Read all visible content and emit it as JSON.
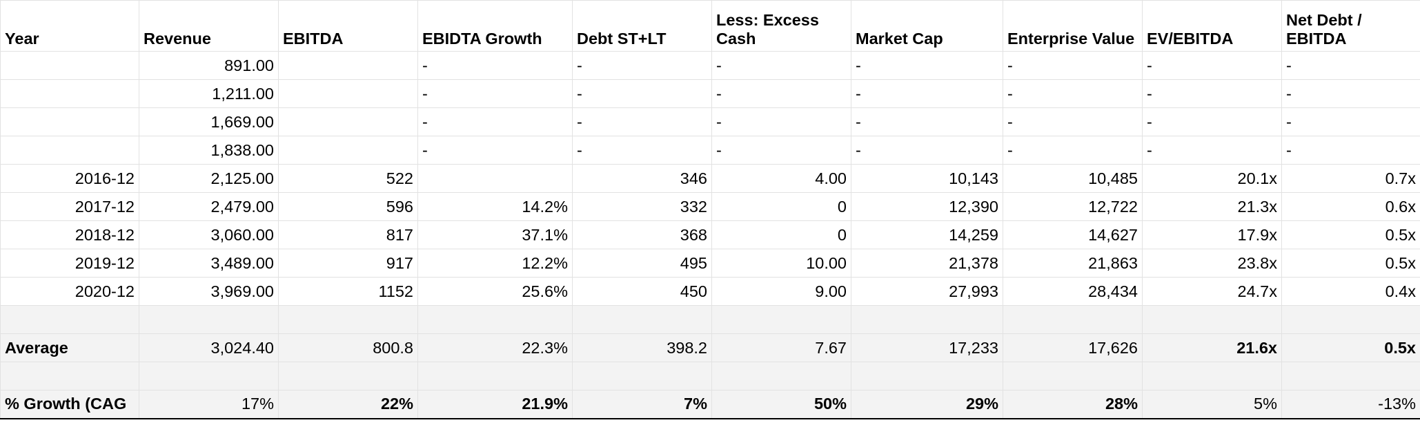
{
  "columns": [
    "Year",
    "Revenue",
    "EBITDA",
    "EBIDTA Growth",
    "Debt ST+LT",
    "Less: Excess Cash",
    "Market Cap",
    "Enterprise Value",
    "EV/EBITDA",
    "Net Debt / EBITDA"
  ],
  "rows": [
    [
      "",
      "891.00",
      "",
      "-",
      "-",
      "-",
      "-",
      "-",
      "-",
      "-"
    ],
    [
      "",
      "1,211.00",
      "",
      "-",
      "-",
      "-",
      "-",
      "-",
      "-",
      "-"
    ],
    [
      "",
      "1,669.00",
      "",
      "-",
      "-",
      "-",
      "-",
      "-",
      "-",
      "-"
    ],
    [
      "",
      "1,838.00",
      "",
      "-",
      "-",
      "-",
      "-",
      "-",
      "-",
      "-"
    ],
    [
      "2016-12",
      "2,125.00",
      "522",
      "",
      "346",
      "4.00",
      "10,143",
      "10,485",
      "20.1x",
      "0.7x"
    ],
    [
      "2017-12",
      "2,479.00",
      "596",
      "14.2%",
      "332",
      "0",
      "12,390",
      "12,722",
      "21.3x",
      "0.6x"
    ],
    [
      "2018-12",
      "3,060.00",
      "817",
      "37.1%",
      "368",
      "0",
      "14,259",
      "14,627",
      "17.9x",
      "0.5x"
    ],
    [
      "2019-12",
      "3,489.00",
      "917",
      "12.2%",
      "495",
      "10.00",
      "21,378",
      "21,863",
      "23.8x",
      "0.5x"
    ],
    [
      "2020-12",
      "3,969.00",
      "1152",
      "25.6%",
      "450",
      "9.00",
      "27,993",
      "28,434",
      "24.7x",
      "0.4x"
    ]
  ],
  "average": [
    "Average",
    "3,024.40",
    "800.8",
    "22.3%",
    "398.2",
    "7.67",
    "17,233",
    "17,626",
    "21.6x",
    "0.5x"
  ],
  "growth": [
    "% Growth (CAG",
    "17%",
    "22%",
    "21.9%",
    "7%",
    "50%",
    "29%",
    "28%",
    "5%",
    "-13%"
  ]
}
